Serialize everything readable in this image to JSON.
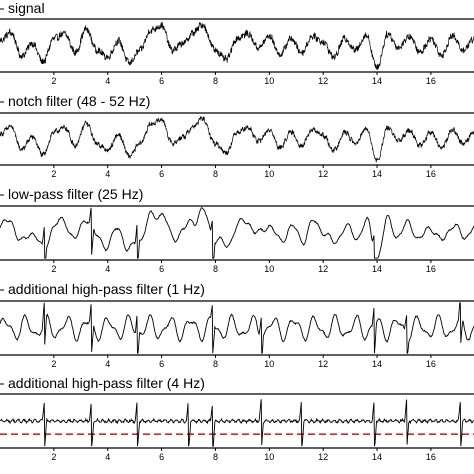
{
  "chart_data": [
    {
      "type": "line",
      "title": "signal",
      "x": [
        0,
        17.6
      ],
      "xticks": [
        2,
        4,
        6,
        8,
        10,
        12,
        14,
        16
      ],
      "tick_labels": [
        "2",
        "4",
        "6",
        "8",
        "10",
        "12",
        "14",
        "16"
      ],
      "series": [
        {
          "style": "noisy-slow-wave",
          "color": "#000000",
          "wave": [
            [
              0,
              0.2
            ],
            [
              0.4,
              0.55
            ],
            [
              0.8,
              -0.45
            ],
            [
              1.2,
              0.1
            ],
            [
              1.6,
              -0.7
            ],
            [
              2.0,
              0.3
            ],
            [
              2.4,
              0.5
            ],
            [
              2.8,
              -0.3
            ],
            [
              3.2,
              0.7
            ],
            [
              3.6,
              -0.2
            ],
            [
              4.0,
              -0.5
            ],
            [
              4.4,
              0.2
            ],
            [
              4.8,
              -0.75
            ],
            [
              5.2,
              -0.2
            ],
            [
              5.6,
              0.65
            ],
            [
              6.0,
              0.85
            ],
            [
              6.4,
              -0.2
            ],
            [
              6.8,
              0.1
            ],
            [
              7.2,
              0.55
            ],
            [
              7.5,
              0.9
            ],
            [
              8.0,
              -0.2
            ],
            [
              8.4,
              -0.6
            ],
            [
              8.8,
              0.3
            ],
            [
              9.2,
              0.5
            ],
            [
              9.6,
              -0.1
            ],
            [
              10.0,
              0.4
            ],
            [
              10.4,
              -0.4
            ],
            [
              10.8,
              0.3
            ],
            [
              11.2,
              -0.3
            ],
            [
              11.6,
              0.4
            ],
            [
              12.0,
              0.15
            ],
            [
              12.4,
              -0.5
            ],
            [
              12.8,
              0.3
            ],
            [
              13.2,
              -0.2
            ],
            [
              13.6,
              0.45
            ],
            [
              14.0,
              -0.95
            ],
            [
              14.4,
              0.5
            ],
            [
              14.8,
              -0.1
            ],
            [
              15.2,
              0.4
            ],
            [
              15.6,
              -0.3
            ],
            [
              16.0,
              0.3
            ],
            [
              16.4,
              -0.4
            ],
            [
              16.8,
              0.4
            ],
            [
              17.2,
              -0.2
            ],
            [
              17.6,
              0.3
            ]
          ],
          "noise": 0.14,
          "spikes": []
        }
      ]
    },
    {
      "type": "line",
      "title": "notch filter (48 - 52 Hz)",
      "x": [
        0,
        17.6
      ],
      "xticks": [
        2,
        4,
        6,
        8,
        10,
        12,
        14,
        16
      ],
      "tick_labels": [
        "2",
        "4",
        "6",
        "8",
        "10",
        "12",
        "14",
        "16"
      ],
      "series": [
        {
          "style": "noisy-slow-wave",
          "color": "#000000",
          "wave": [
            [
              0,
              0.2
            ],
            [
              0.4,
              0.55
            ],
            [
              0.8,
              -0.45
            ],
            [
              1.2,
              0.1
            ],
            [
              1.6,
              -0.7
            ],
            [
              2.0,
              0.3
            ],
            [
              2.4,
              0.5
            ],
            [
              2.8,
              -0.3
            ],
            [
              3.2,
              0.7
            ],
            [
              3.6,
              -0.2
            ],
            [
              4.0,
              -0.5
            ],
            [
              4.4,
              0.2
            ],
            [
              4.8,
              -0.75
            ],
            [
              5.2,
              -0.2
            ],
            [
              5.6,
              0.65
            ],
            [
              6.0,
              0.85
            ],
            [
              6.4,
              -0.2
            ],
            [
              6.8,
              0.1
            ],
            [
              7.2,
              0.55
            ],
            [
              7.5,
              0.9
            ],
            [
              8.0,
              -0.2
            ],
            [
              8.4,
              -0.6
            ],
            [
              8.8,
              0.3
            ],
            [
              9.2,
              0.5
            ],
            [
              9.6,
              -0.1
            ],
            [
              10.0,
              0.4
            ],
            [
              10.4,
              -0.4
            ],
            [
              10.8,
              0.3
            ],
            [
              11.2,
              -0.3
            ],
            [
              11.6,
              0.4
            ],
            [
              12.0,
              0.15
            ],
            [
              12.4,
              -0.5
            ],
            [
              12.8,
              0.3
            ],
            [
              13.2,
              -0.2
            ],
            [
              13.6,
              0.45
            ],
            [
              14.0,
              -0.95
            ],
            [
              14.4,
              0.5
            ],
            [
              14.8,
              -0.1
            ],
            [
              15.2,
              0.4
            ],
            [
              15.6,
              -0.3
            ],
            [
              16.0,
              0.3
            ],
            [
              16.4,
              -0.4
            ],
            [
              16.8,
              0.4
            ],
            [
              17.2,
              -0.2
            ],
            [
              17.6,
              0.3
            ]
          ],
          "noise": 0.1,
          "spikes": []
        }
      ]
    },
    {
      "type": "line",
      "title": "low-pass filter (25 Hz)",
      "x": [
        0,
        17.6
      ],
      "xticks": [
        2,
        4,
        6,
        8,
        10,
        12,
        14,
        16
      ],
      "tick_labels": [
        "2",
        "4",
        "6",
        "8",
        "10",
        "12",
        "14",
        "16"
      ],
      "series": [
        {
          "style": "smooth-wave",
          "color": "#000000",
          "wave": [
            [
              0,
              0.2
            ],
            [
              0.4,
              0.55
            ],
            [
              0.8,
              -0.45
            ],
            [
              1.2,
              0.1
            ],
            [
              1.6,
              -0.7
            ],
            [
              2.0,
              0.3
            ],
            [
              2.4,
              0.5
            ],
            [
              2.8,
              -0.3
            ],
            [
              3.2,
              0.7
            ],
            [
              3.6,
              -0.2
            ],
            [
              4.0,
              -0.5
            ],
            [
              4.4,
              0.2
            ],
            [
              4.8,
              -0.75
            ],
            [
              5.2,
              -0.2
            ],
            [
              5.6,
              0.65
            ],
            [
              6.0,
              0.85
            ],
            [
              6.4,
              -0.2
            ],
            [
              6.8,
              0.1
            ],
            [
              7.2,
              0.55
            ],
            [
              7.5,
              0.9
            ],
            [
              8.0,
              -0.2
            ],
            [
              8.4,
              -0.6
            ],
            [
              8.8,
              0.3
            ],
            [
              9.2,
              0.5
            ],
            [
              9.6,
              -0.1
            ],
            [
              10.0,
              0.4
            ],
            [
              10.4,
              -0.4
            ],
            [
              10.8,
              0.3
            ],
            [
              11.2,
              -0.3
            ],
            [
              11.6,
              0.4
            ],
            [
              12.0,
              0.15
            ],
            [
              12.4,
              -0.5
            ],
            [
              12.8,
              0.3
            ],
            [
              13.2,
              -0.2
            ],
            [
              13.6,
              0.45
            ],
            [
              14.0,
              -0.95
            ],
            [
              14.4,
              0.5
            ],
            [
              14.8,
              -0.1
            ],
            [
              15.2,
              0.4
            ],
            [
              15.6,
              -0.3
            ],
            [
              16.0,
              0.3
            ],
            [
              16.4,
              -0.4
            ],
            [
              16.8,
              0.4
            ],
            [
              17.2,
              -0.2
            ],
            [
              17.6,
              0.3
            ]
          ],
          "noise": 0.05,
          "spikes": [
            1.65,
            3.4,
            5.1,
            7.9,
            13.9
          ]
        }
      ]
    },
    {
      "type": "line",
      "title": "additional high-pass filter (1 Hz)",
      "x": [
        0,
        17.6
      ],
      "xticks": [
        2,
        4,
        6,
        8,
        10,
        12,
        14,
        16
      ],
      "tick_labels": [
        "2",
        "4",
        "6",
        "8",
        "10",
        "12",
        "14",
        "16"
      ],
      "series": [
        {
          "style": "oscillation",
          "color": "#000000",
          "wave": [
            [
              0,
              0.0
            ],
            [
              17.6,
              0.0
            ]
          ],
          "noise": 0.06,
          "spikes": [
            1.65,
            3.4,
            5.1,
            7.9,
            9.7,
            13.9,
            15.1,
            17.1
          ]
        }
      ]
    },
    {
      "type": "line",
      "title": "additional high-pass filter (4 Hz)",
      "x": [
        0,
        17.6
      ],
      "xticks": [
        2,
        4,
        6,
        8,
        10,
        12,
        14,
        16
      ],
      "tick_labels": [
        "2",
        "4",
        "6",
        "8",
        "10",
        "12",
        "14",
        "16"
      ],
      "threshold": {
        "style": "dashed",
        "color": "#d62728",
        "level": -0.55
      },
      "series": [
        {
          "style": "spiky-baseline",
          "color": "#000000",
          "wave": [
            [
              0,
              0.0
            ],
            [
              17.6,
              0.0
            ]
          ],
          "noise": 0.08,
          "spikes": [
            1.65,
            3.4,
            5.1,
            7.0,
            7.9,
            9.7,
            11.2,
            13.9,
            15.1,
            17.1
          ]
        }
      ]
    }
  ]
}
